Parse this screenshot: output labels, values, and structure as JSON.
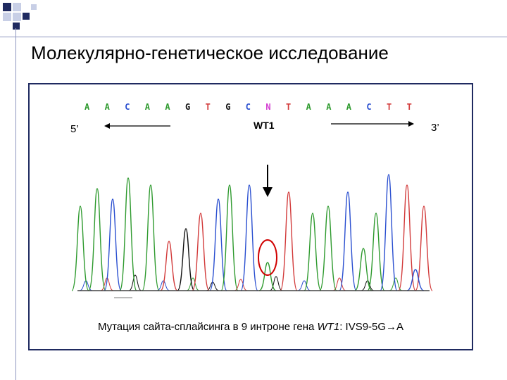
{
  "slide": {
    "title": "Молекулярно-генетическое исследование"
  },
  "figure": {
    "sequence": [
      "A",
      "A",
      "C",
      "A",
      "A",
      "G",
      "T",
      "G",
      "C",
      "N",
      "T",
      "A",
      "A",
      "A",
      "C",
      "T",
      "T"
    ],
    "base_colors": {
      "A": "#2e9a2e",
      "C": "#2a4fd0",
      "G": "#111111",
      "T": "#d23a3a",
      "N": "#d23ad0"
    },
    "label_5": "5’",
    "label_3": "3’",
    "gene_label": "WT1",
    "caption_prefix": "Мутация сайта-сплайсинга в 9 интроне гена ",
    "caption_gene": "WT1",
    "caption_suffix": ": IVS9-5G",
    "caption_arrow": "→",
    "caption_end": "A",
    "highlight_color": "#d00000"
  }
}
